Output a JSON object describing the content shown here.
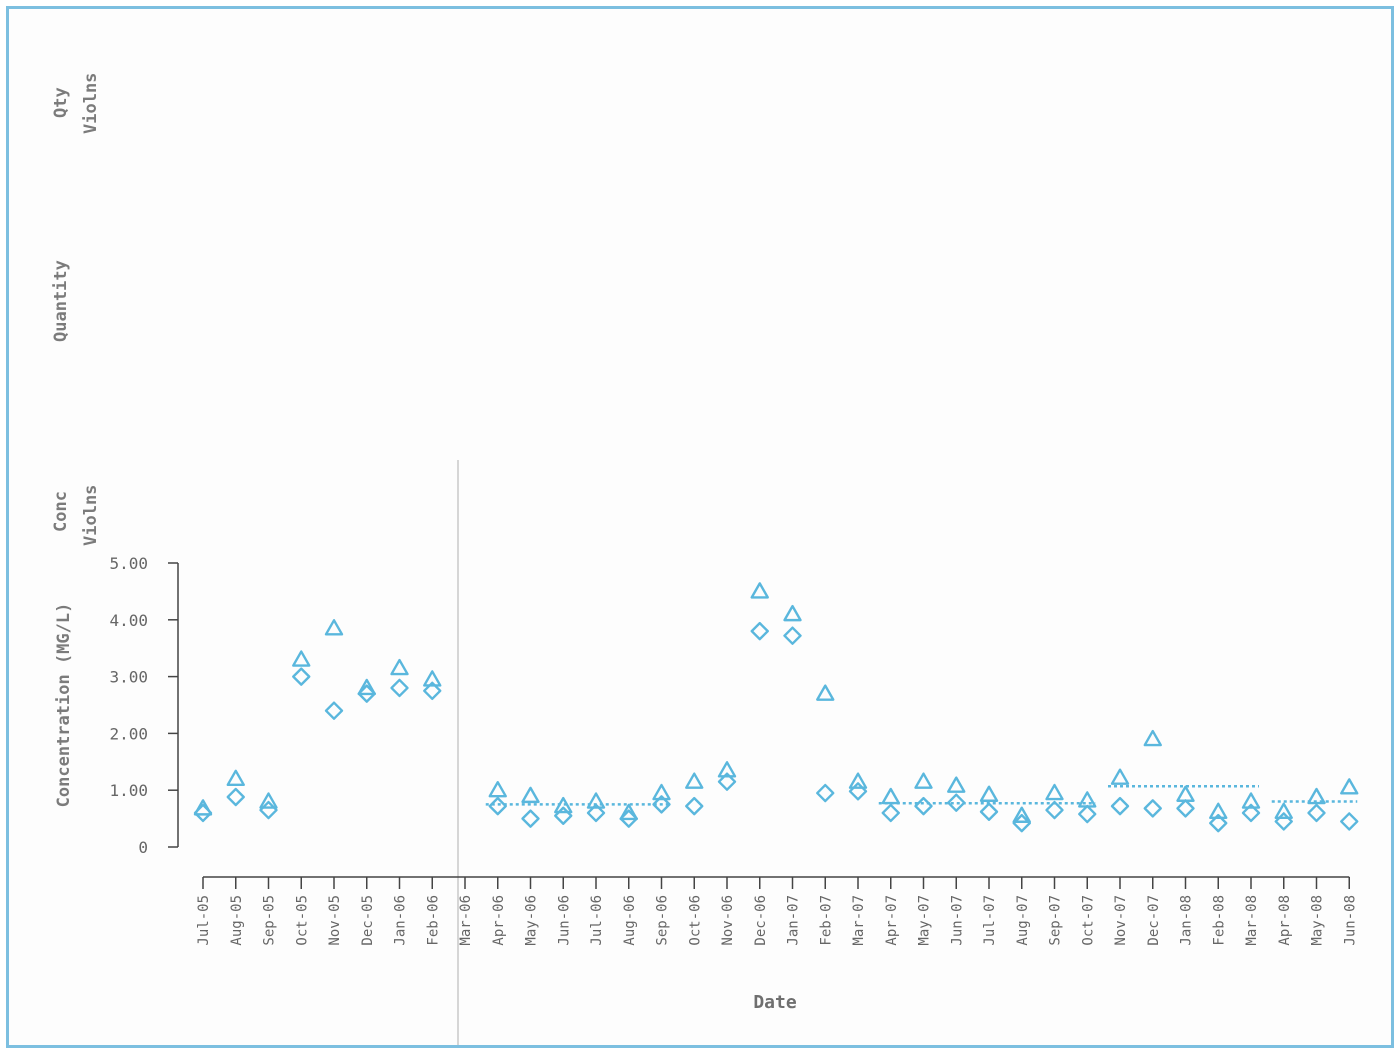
{
  "labels": {
    "qty_line1": "Qty",
    "qty_line2": "Violns",
    "quantity": "Quantity",
    "conc_line1": "Conc",
    "conc_line2": "Violns",
    "ylabel": "Concentration (MG/L)",
    "xlabel": "Date"
  },
  "colors": {
    "marker": "#5ab7dd",
    "frame": "#7cbfe0",
    "axis": "#444444",
    "text": "#666666"
  },
  "chart_data": {
    "type": "scatter",
    "title": "",
    "xlabel": "Date",
    "ylabel": "Concentration (MG/L)",
    "ylim": [
      0,
      5
    ],
    "yticks": [
      "0",
      "1.00",
      "2.00",
      "3.00",
      "4.00",
      "5.00"
    ],
    "grid": false,
    "categories": [
      "Jul-05",
      "Aug-05",
      "Sep-05",
      "Oct-05",
      "Nov-05",
      "Dec-05",
      "Jan-06",
      "Feb-06",
      "Mar-06",
      "Apr-06",
      "May-06",
      "Jun-06",
      "Jul-06",
      "Aug-06",
      "Sep-06",
      "Oct-06",
      "Nov-06",
      "Dec-06",
      "Jan-07",
      "Feb-07",
      "Mar-07",
      "Apr-07",
      "May-07",
      "Jun-07",
      "Jul-07",
      "Aug-07",
      "Sep-07",
      "Oct-07",
      "Nov-07",
      "Dec-07",
      "Jan-08",
      "Feb-08",
      "Mar-08",
      "Apr-08",
      "May-08",
      "Jun-08"
    ],
    "series": [
      {
        "marker": "triangle",
        "values": [
          0.68,
          1.2,
          0.8,
          3.3,
          3.85,
          2.8,
          3.15,
          2.95,
          null,
          1.0,
          0.9,
          0.72,
          0.8,
          0.6,
          0.95,
          1.15,
          1.35,
          4.5,
          4.1,
          2.7,
          1.15,
          0.88,
          1.15,
          1.08,
          0.92,
          0.55,
          0.95,
          0.82,
          1.22,
          1.9,
          0.92,
          0.62,
          0.8,
          0.62,
          0.88,
          1.05
        ]
      },
      {
        "marker": "diamond",
        "values": [
          0.6,
          0.88,
          0.65,
          3.0,
          2.4,
          2.7,
          2.8,
          2.75,
          null,
          0.72,
          0.5,
          0.55,
          0.6,
          0.5,
          0.75,
          0.72,
          1.15,
          3.8,
          3.72,
          0.95,
          0.98,
          0.6,
          0.72,
          0.78,
          0.62,
          0.42,
          0.65,
          0.58,
          0.72,
          0.68,
          0.68,
          0.42,
          0.6,
          0.45,
          0.6,
          0.45
        ]
      }
    ],
    "reference_lines": [
      {
        "from": "Apr-06",
        "to": "Sep-06",
        "value": 0.75
      },
      {
        "from": "Apr-07",
        "to": "Oct-07",
        "value": 0.77
      },
      {
        "from": "Nov-07",
        "to": "Mar-08",
        "value": 1.07
      },
      {
        "from": "Apr-08",
        "to": "Jun-08",
        "value": 0.8
      }
    ]
  }
}
